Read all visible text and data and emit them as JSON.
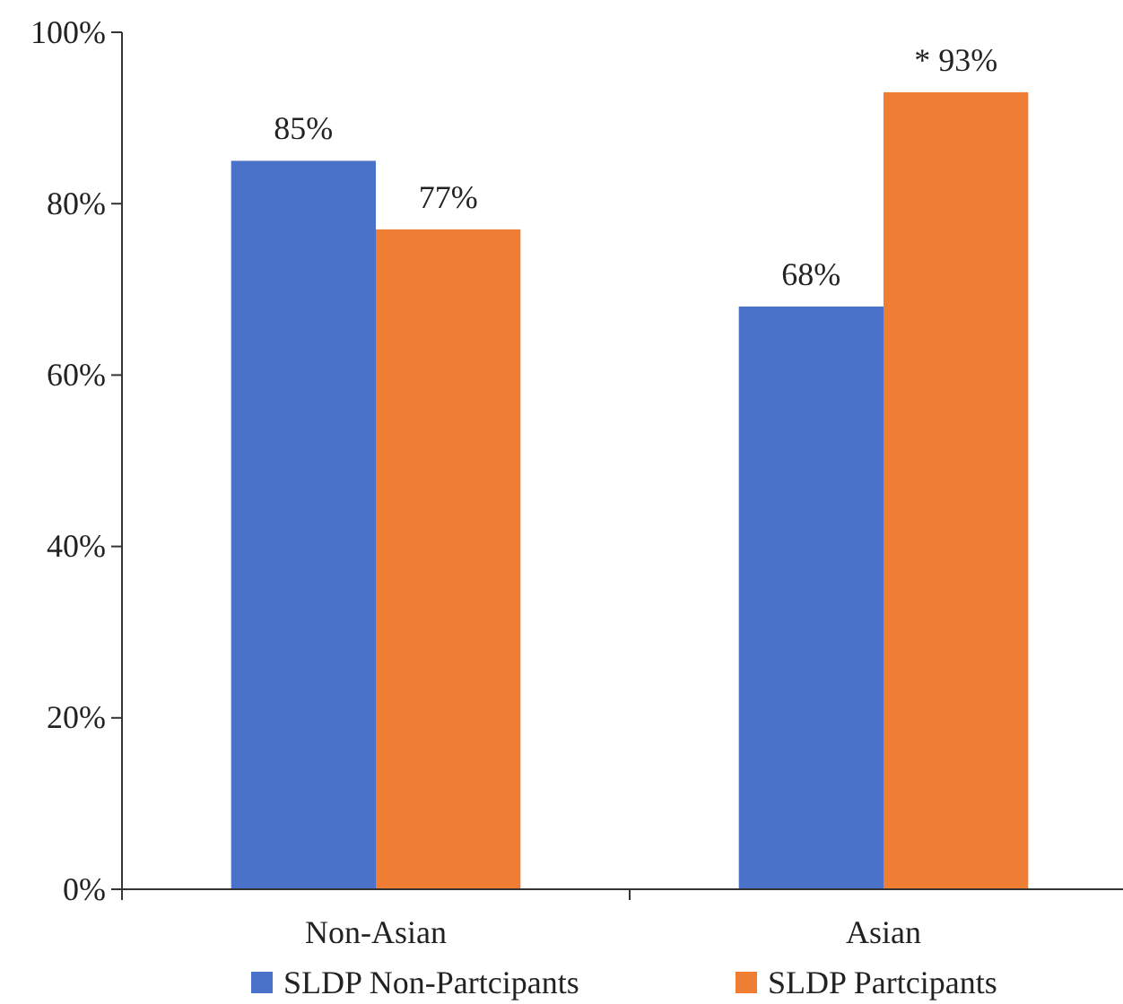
{
  "chart_data": {
    "type": "bar",
    "categories": [
      "Non-Asian",
      "Asian"
    ],
    "series": [
      {
        "name": "SLDP Non-Partcipants",
        "color": "#4a72c8",
        "values": [
          85,
          68
        ],
        "value_labels": [
          "85%",
          "68%"
        ]
      },
      {
        "name": "SLDP Partcipants",
        "color": "#ef7d33",
        "values": [
          77,
          93
        ],
        "value_labels": [
          "77%",
          "* 93%"
        ]
      }
    ],
    "ylim": [
      0,
      100
    ],
    "yticks": [
      {
        "value": 0,
        "label": "0%"
      },
      {
        "value": 20,
        "label": "20%"
      },
      {
        "value": 40,
        "label": "40%"
      },
      {
        "value": 60,
        "label": "60%"
      },
      {
        "value": 80,
        "label": "80%"
      },
      {
        "value": 100,
        "label": "100%"
      }
    ],
    "grid": false,
    "legend": "bottom"
  }
}
